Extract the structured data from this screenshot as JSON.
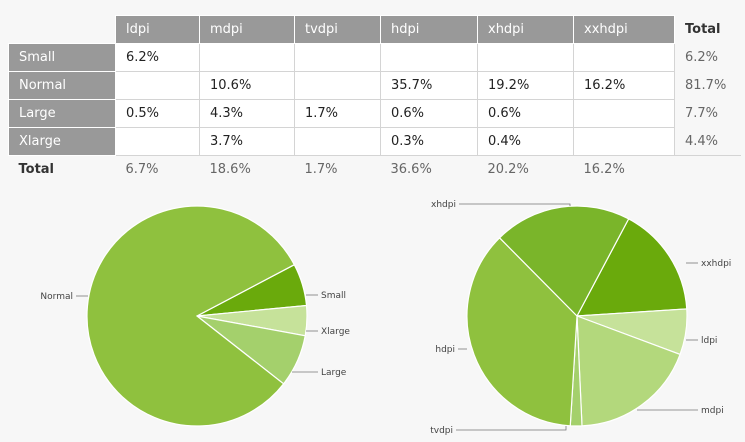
{
  "table": {
    "columns": [
      "ldpi",
      "mdpi",
      "tvdpi",
      "hdpi",
      "xhdpi",
      "xxhdpi"
    ],
    "total_label": "Total",
    "rows": [
      {
        "label": "Small",
        "cells": [
          "6.2%",
          "",
          "",
          "",
          "",
          ""
        ],
        "total": "6.2%"
      },
      {
        "label": "Normal",
        "cells": [
          "",
          "10.6%",
          "",
          "35.7%",
          "19.2%",
          "16.2%"
        ],
        "total": "81.7%"
      },
      {
        "label": "Large",
        "cells": [
          "0.5%",
          "4.3%",
          "1.7%",
          "0.6%",
          "0.6%",
          ""
        ],
        "total": "7.7%"
      },
      {
        "label": "Xlarge",
        "cells": [
          "",
          "3.7%",
          "",
          "0.3%",
          "0.4%",
          ""
        ],
        "total": "4.4%"
      }
    ],
    "column_totals": [
      "6.7%",
      "18.6%",
      "1.7%",
      "36.6%",
      "20.2%",
      "16.2%"
    ]
  },
  "chart_data": [
    {
      "type": "pie",
      "slices": [
        {
          "label": "Small",
          "value": 6.2,
          "color": "#6aaa0c"
        },
        {
          "label": "Xlarge",
          "value": 4.4,
          "color": "#c6e29a"
        },
        {
          "label": "Large",
          "value": 7.7,
          "color": "#a4d06c"
        },
        {
          "label": "Normal",
          "value": 81.7,
          "color": "#8fc13e"
        }
      ]
    },
    {
      "type": "pie",
      "slices": [
        {
          "label": "xxhdpi",
          "value": 16.2,
          "color": "#6aaa0c"
        },
        {
          "label": "ldpi",
          "value": 6.7,
          "color": "#c6e29a"
        },
        {
          "label": "mdpi",
          "value": 18.6,
          "color": "#b3d87c"
        },
        {
          "label": "tvdpi",
          "value": 1.7,
          "color": "#a4d06c"
        },
        {
          "label": "hdpi",
          "value": 36.6,
          "color": "#8fc13e"
        },
        {
          "label": "xhdpi",
          "value": 20.2,
          "color": "#7ab52a"
        }
      ]
    }
  ]
}
